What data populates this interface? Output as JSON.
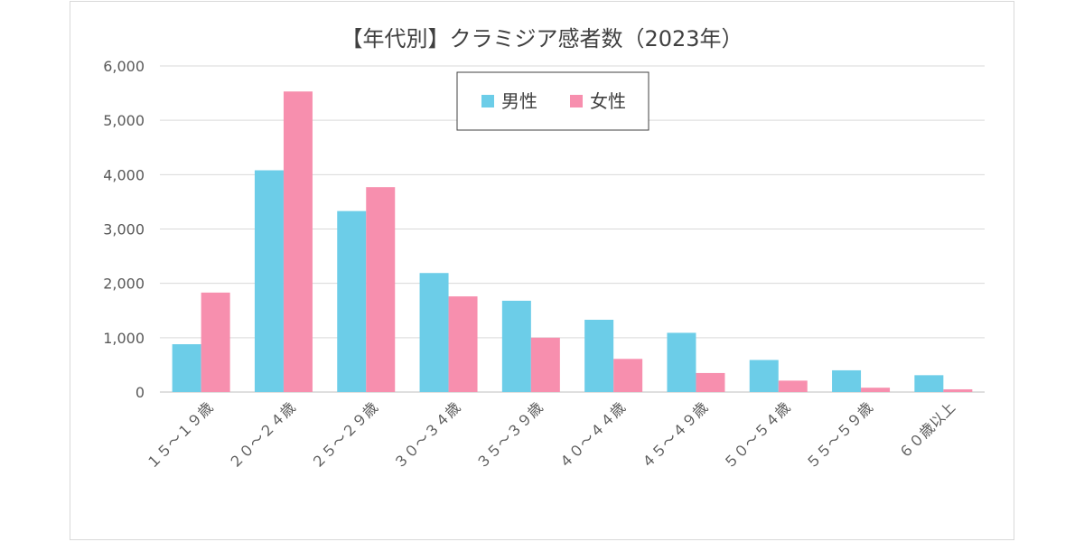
{
  "chart_data": {
    "type": "bar",
    "title": "【年代別】クラミジア感者数（2023年）",
    "xlabel": "",
    "ylabel": "",
    "ylim": [
      0,
      6000
    ],
    "yticks": [
      "0",
      "1,000",
      "2,000",
      "3,000",
      "4,000",
      "5,000",
      "6,000"
    ],
    "yticks_values": [
      0,
      1000,
      2000,
      3000,
      4000,
      5000,
      6000
    ],
    "grid": true,
    "legend_position": "top-center",
    "categories": [
      "１５～１９歳",
      "２０～２４歳",
      "２５～２９歳",
      "３０～３４歳",
      "３５～３９歳",
      "４０～４４歳",
      "４５～４９歳",
      "５０～５４歳",
      "５５～５９歳",
      "６０歳以上"
    ],
    "series": [
      {
        "name": "男性",
        "color": "#6ccde8",
        "values": [
          880,
          4080,
          3330,
          2190,
          1680,
          1330,
          1090,
          590,
          400,
          310
        ]
      },
      {
        "name": "女性",
        "color": "#f78fae",
        "values": [
          1830,
          5530,
          3770,
          1760,
          1000,
          610,
          350,
          210,
          80,
          50
        ]
      }
    ]
  }
}
